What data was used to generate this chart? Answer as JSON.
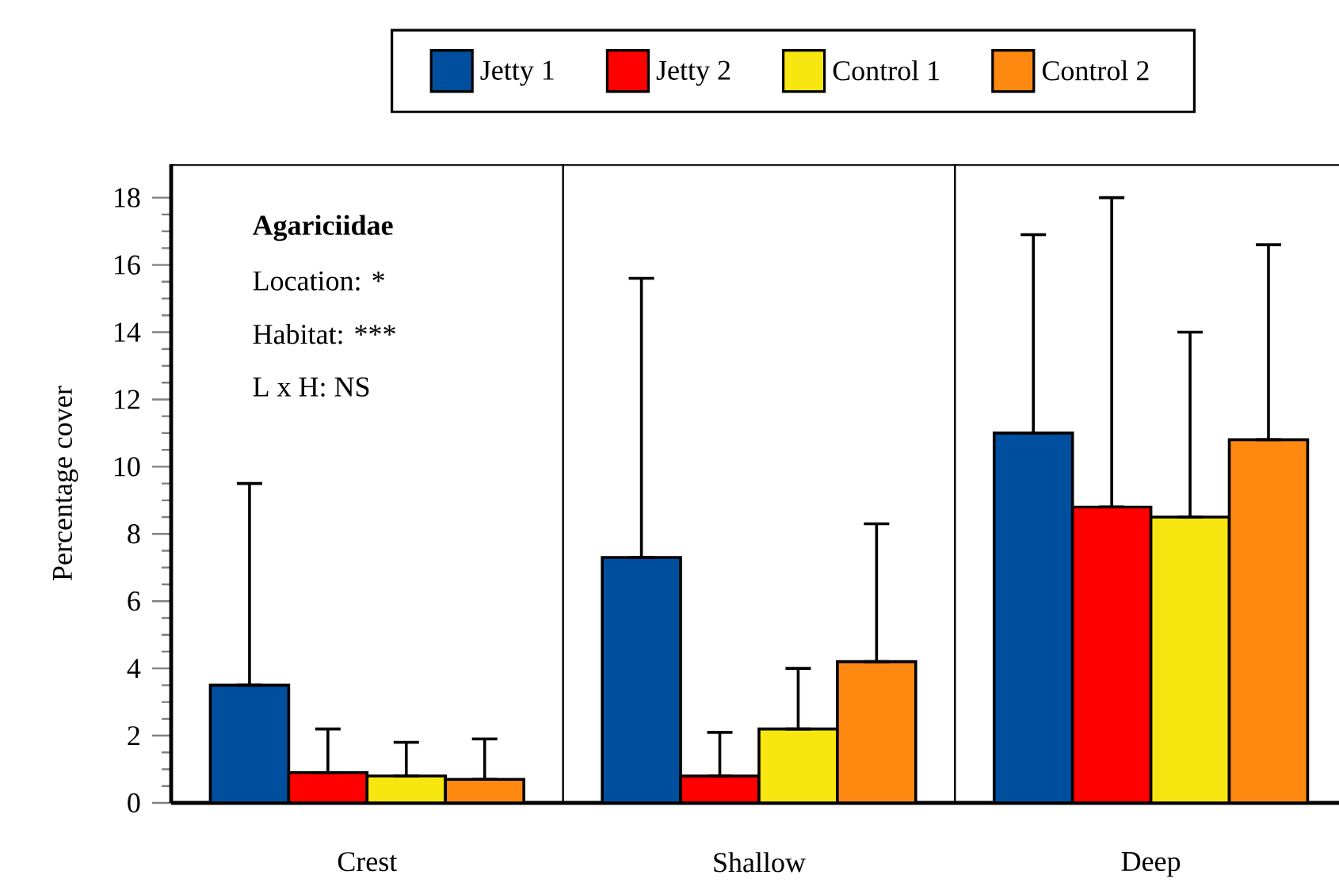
{
  "chart_data": {
    "type": "bar",
    "ylabel": "Percentage cover",
    "categories": [
      "Crest",
      "Shallow",
      "Deep"
    ],
    "series": [
      {
        "name": "Jetty 1",
        "color": "#004f9e",
        "values": [
          3.5,
          7.3,
          11.0
        ],
        "errors": [
          [
            3.5,
            9.5
          ],
          [
            7.3,
            15.6
          ],
          [
            11.0,
            16.9
          ]
        ]
      },
      {
        "name": "Jetty 2",
        "color": "#ff0000",
        "values": [
          0.9,
          0.8,
          8.8
        ],
        "errors": [
          [
            0.9,
            2.2
          ],
          [
            0.8,
            2.1
          ],
          [
            8.8,
            18.0
          ]
        ]
      },
      {
        "name": "Control 1",
        "color": "#f7e60f",
        "values": [
          0.8,
          2.2,
          8.5
        ],
        "errors": [
          [
            0.8,
            1.8
          ],
          [
            2.2,
            4.0
          ],
          [
            8.5,
            14.0
          ]
        ]
      },
      {
        "name": "Control 2",
        "color": "#ff8811",
        "values": [
          0.7,
          4.2,
          10.8
        ],
        "errors": [
          [
            0.7,
            1.9
          ],
          [
            4.2,
            8.3
          ],
          [
            10.8,
            16.6
          ]
        ]
      }
    ],
    "annotations": [
      "Agariciidae",
      "Location: *",
      "Habitat: ***",
      "L x H: NS"
    ],
    "ylim": [
      0,
      19
    ],
    "yticks": [
      0,
      2,
      4,
      6,
      8,
      10,
      12,
      14,
      16,
      18
    ],
    "legend": "top",
    "grid": false
  }
}
